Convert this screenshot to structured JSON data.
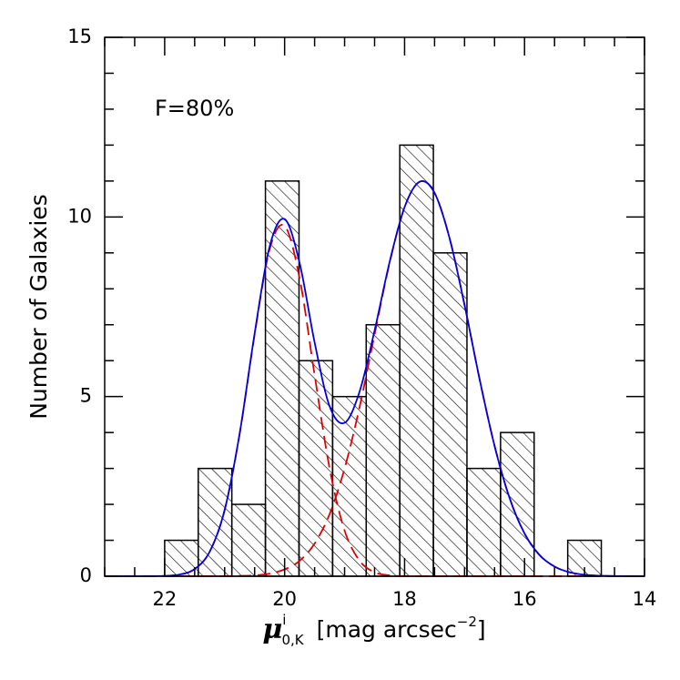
{
  "chart_data": {
    "type": "histogram",
    "ylabel": "Number of Galaxies",
    "xlabel": {
      "symbol": "μ",
      "sup": "i",
      "sub": "0,K",
      "unit": "[mag arcsec",
      "unit_sup": "−2",
      "close": "]"
    },
    "annotation": "F=80%",
    "bins": [
      22,
      21.44,
      20.88,
      20.32,
      19.76,
      19.2,
      18.64,
      18.08,
      17.52,
      16.96,
      16.4,
      15.84,
      15.28,
      14.72
    ],
    "values": [
      1,
      3,
      2,
      11,
      6,
      5,
      7,
      12,
      9,
      3,
      4,
      0,
      1
    ],
    "color": "#000000",
    "xlim": [
      23,
      14
    ],
    "xticks": [
      22,
      20,
      18,
      16,
      14
    ],
    "xticks_minor": [
      23,
      22.5,
      21.5,
      21,
      20.5,
      19.5,
      19,
      18.5,
      17.5,
      17,
      16.5,
      15.5,
      15,
      14.5
    ],
    "ylim": [
      0,
      15
    ],
    "yticks": [
      0,
      5,
      10,
      15
    ],
    "yticks_minor": [
      1,
      2,
      3,
      4,
      6,
      7,
      8,
      9,
      11,
      12,
      13,
      14
    ],
    "curve_x": [
      23,
      22.75,
      22.5,
      22.25,
      22,
      21.75,
      21.5,
      21.25,
      21,
      20.75,
      20.5,
      20.25,
      20,
      19.75,
      19.5,
      19.25,
      19,
      18.75,
      18.5,
      18.25,
      18,
      17.75,
      17.5,
      17.25,
      17,
      16.75,
      16.5,
      16.25,
      16,
      15.75,
      15.5,
      15.25,
      15,
      14.75,
      14.5,
      14.25,
      14
    ],
    "curves": [
      {
        "color": "#e00000",
        "dashed": true,
        "values": [
          0,
          0,
          0,
          0.001,
          0.009,
          0.046,
          0.2,
          0.68,
          1.84,
          3.96,
          6.73,
          9.1,
          9.75,
          8.29,
          5.6,
          3.0,
          1.27,
          0.43,
          0.11,
          0.024,
          0.004,
          0,
          0,
          0,
          0,
          0,
          0,
          0,
          0,
          0,
          0,
          0,
          0,
          0,
          0,
          0,
          0
        ]
      },
      {
        "color": "#e00000",
        "dashed": true,
        "values": [
          0,
          0,
          0,
          0,
          0,
          0,
          0,
          0.001,
          0.003,
          0.009,
          0.026,
          0.074,
          0.19,
          0.43,
          0.91,
          1.73,
          3.0,
          4.71,
          6.73,
          8.72,
          10.27,
          10.98,
          10.67,
          9.41,
          7.55,
          5.49,
          3.63,
          2.18,
          1.19,
          0.59,
          0.27,
          0.11,
          0.04,
          0.014,
          0.004,
          0.001,
          0
        ]
      },
      {
        "color": "#0000e0",
        "dashed": false,
        "values": [
          0,
          0,
          0,
          0.001,
          0.009,
          0.046,
          0.2,
          0.681,
          1.843,
          3.969,
          6.756,
          9.174,
          9.94,
          8.72,
          6.51,
          4.73,
          4.27,
          5.14,
          6.84,
          8.744,
          10.274,
          10.98,
          10.67,
          9.41,
          7.55,
          5.49,
          3.63,
          2.18,
          1.19,
          0.59,
          0.27,
          0.11,
          0.04,
          0.014,
          0.004,
          0.001,
          0
        ]
      }
    ]
  }
}
